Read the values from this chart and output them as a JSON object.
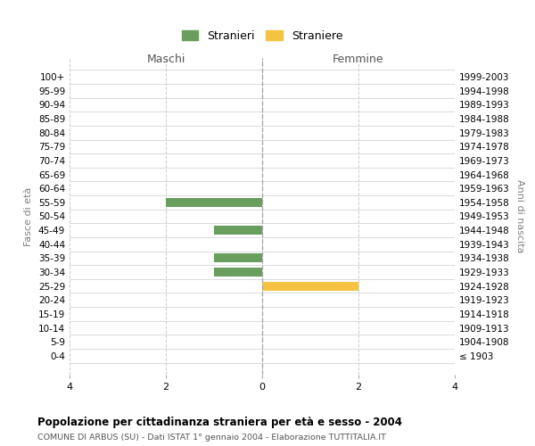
{
  "age_groups": [
    "100+",
    "95-99",
    "90-94",
    "85-89",
    "80-84",
    "75-79",
    "70-74",
    "65-69",
    "60-64",
    "55-59",
    "50-54",
    "45-49",
    "40-44",
    "35-39",
    "30-34",
    "25-29",
    "20-24",
    "15-19",
    "10-14",
    "5-9",
    "0-4"
  ],
  "birth_years": [
    "≤ 1903",
    "1904-1908",
    "1909-1913",
    "1914-1918",
    "1919-1923",
    "1924-1928",
    "1929-1933",
    "1934-1938",
    "1939-1943",
    "1944-1948",
    "1949-1953",
    "1954-1958",
    "1959-1963",
    "1964-1968",
    "1969-1973",
    "1974-1978",
    "1979-1983",
    "1984-1988",
    "1989-1993",
    "1994-1998",
    "1999-2003"
  ],
  "maschi_stranieri": [
    0,
    0,
    0,
    0,
    0,
    0,
    0,
    0,
    0,
    2,
    0,
    1,
    0,
    1,
    1,
    0,
    0,
    0,
    0,
    0,
    0
  ],
  "femmine_straniere": [
    0,
    0,
    0,
    0,
    0,
    0,
    0,
    0,
    0,
    0,
    0,
    0,
    0,
    0,
    0,
    2,
    0,
    0,
    0,
    0,
    0
  ],
  "color_maschi": "#6a9e5e",
  "color_femmine": "#f5c242",
  "xlim": 4,
  "title": "Popolazione per cittadinanza straniera per età e sesso - 2004",
  "subtitle": "COMUNE DI ARBUS (SU) - Dati ISTAT 1° gennaio 2004 - Elaborazione TUTTITALIA.IT",
  "ylabel_left": "Fasce di età",
  "ylabel_right": "Anni di nascita",
  "legend_stranieri": "Stranieri",
  "legend_straniere": "Straniere",
  "maschi_label": "Maschi",
  "femmine_label": "Femmine",
  "background_color": "#ffffff",
  "grid_color": "#cccccc"
}
